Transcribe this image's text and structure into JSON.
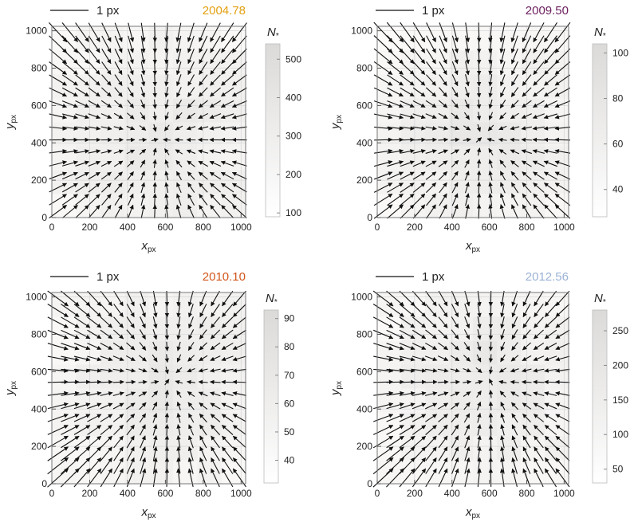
{
  "scale_bar_label": "1 px",
  "axes": {
    "xlabel_main": "x",
    "xlabel_sub": "px",
    "ylabel_main": "y",
    "ylabel_sub": "px",
    "colorbar_title_main": "N",
    "colorbar_title_sub": "*",
    "xticks": [
      0,
      200,
      400,
      600,
      800,
      1000
    ],
    "yticks": [
      0,
      200,
      400,
      600,
      800,
      1000
    ],
    "xlim": [
      0,
      1024
    ],
    "ylim": [
      0,
      1024
    ]
  },
  "chart_data": [
    {
      "type": "heatmap",
      "title": "2004.78",
      "title_color": "#e3a010",
      "colorbar": {
        "ticks": [
          100,
          200,
          300,
          400,
          500
        ],
        "range": [
          90,
          540
        ]
      },
      "vector_field": {
        "center": [
          560,
          420
        ],
        "strength": 0.85,
        "grid_step": 64
      }
    },
    {
      "type": "heatmap",
      "title": "2009.50",
      "title_color": "#6b1e5e",
      "colorbar": {
        "ticks": [
          40,
          60,
          80,
          100
        ],
        "range": [
          28,
          104
        ]
      },
      "vector_field": {
        "center": [
          560,
          430
        ],
        "strength": 0.9,
        "grid_step": 64
      }
    },
    {
      "type": "heatmap",
      "title": "2010.10",
      "title_color": "#d2561c",
      "colorbar": {
        "ticks": [
          40,
          50,
          60,
          70,
          80,
          90
        ],
        "range": [
          32,
          93
        ]
      },
      "vector_field": {
        "center": [
          620,
          560
        ],
        "strength": 0.9,
        "grid_step": 64
      }
    },
    {
      "type": "heatmap",
      "title": "2012.56",
      "title_color": "#9bb3d6",
      "colorbar": {
        "ticks": [
          50,
          100,
          150,
          200,
          250
        ],
        "range": [
          30,
          280
        ]
      },
      "vector_field": {
        "center": [
          600,
          560
        ],
        "strength": 0.9,
        "grid_step": 64
      }
    }
  ]
}
